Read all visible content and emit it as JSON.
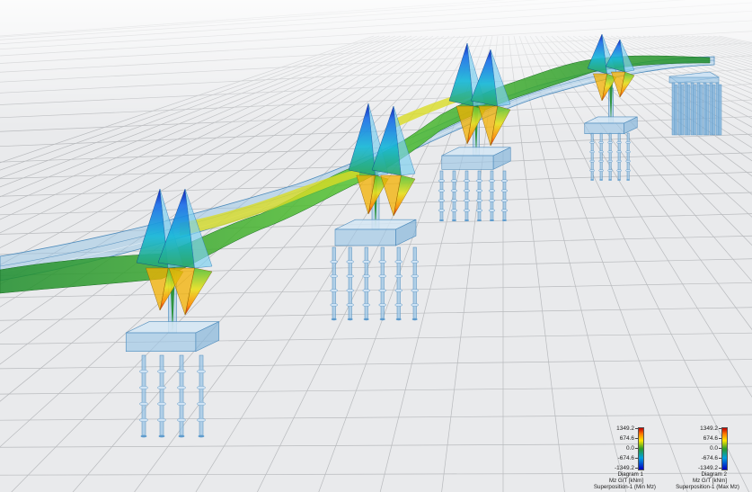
{
  "legends": [
    {
      "ticks": [
        "1349.2",
        "674.6",
        "0.0",
        "-674.6",
        "-1349.2"
      ],
      "line1": "Diagram 1",
      "line2": "Mz G/T [kNm]",
      "line3": "Superposition-1 (Min Mz)"
    },
    {
      "ticks": [
        "1349.2",
        "674.6",
        "0.0",
        "-674.6",
        "-1349.2"
      ],
      "line1": "Diagram 2",
      "line2": "Mz G/T [kNm]",
      "line3": "Superposition-1 (Max Mz)"
    }
  ],
  "colors": {
    "background": "#e9eaec",
    "grid": "#b8babd",
    "structure": "#9cc6e6",
    "structure_edge": "#4f8cbc",
    "scale_max": "#c00000",
    "scale_mid": "#2a9a2a",
    "scale_min": "#0000c0"
  }
}
